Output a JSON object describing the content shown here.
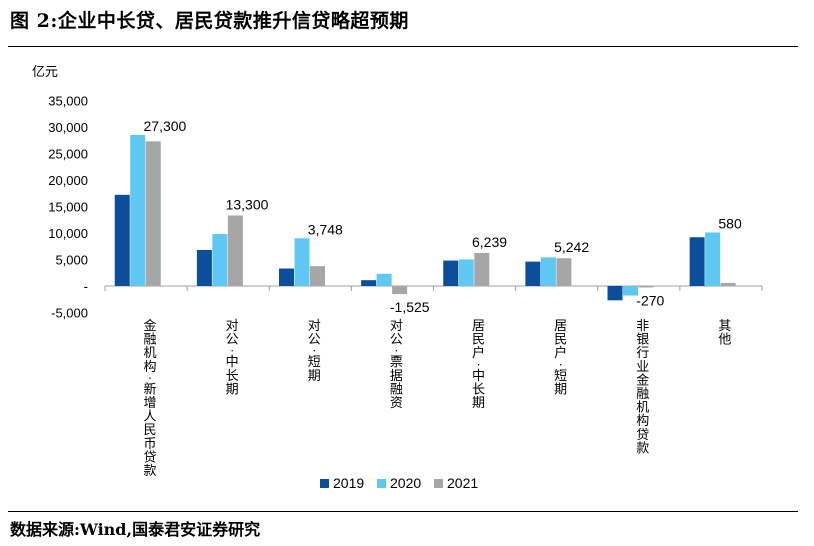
{
  "header": {
    "title": "图 2:企业中长贷、居民贷款推升信贷略超预期"
  },
  "footer": {
    "source": "数据来源:Wind,国泰君安证券研究"
  },
  "colors": {
    "2019": "#0b4f9c",
    "2020": "#5ec8f2",
    "2021": "#a6a6a6"
  },
  "chart_data": {
    "type": "bar",
    "unit_label": "亿元",
    "categories": [
      "金融机构:新增人民币贷款",
      "对公:中长期",
      "对公:短期",
      "对公:票据融资",
      "居民户:中长期",
      "居民户:短期",
      "非银行业金融机构贷款",
      "其他"
    ],
    "series": [
      {
        "name": "2019",
        "values": [
          17200,
          6800,
          3300,
          1100,
          4800,
          4600,
          -2700,
          9200
        ]
      },
      {
        "name": "2020",
        "values": [
          28500,
          9800,
          9000,
          2300,
          5000,
          5400,
          -1800,
          10100
        ]
      },
      {
        "name": "2021",
        "values": [
          27300,
          13300,
          3748,
          -1525,
          6239,
          5242,
          -270,
          580
        ]
      }
    ],
    "data_labels": {
      "series": "2021",
      "texts": [
        "27,300",
        "13,300",
        "3,748",
        "-1,525",
        "6,239",
        "5,242",
        "-270",
        "580"
      ]
    },
    "y_ticks": [
      {
        "value": 35000,
        "label": "35,000"
      },
      {
        "value": 30000,
        "label": "30,000"
      },
      {
        "value": 25000,
        "label": "25,000"
      },
      {
        "value": 20000,
        "label": "20,000"
      },
      {
        "value": 15000,
        "label": "15,000"
      },
      {
        "value": 10000,
        "label": "10,000"
      },
      {
        "value": 5000,
        "label": "5,000"
      },
      {
        "value": 0,
        "label": "-"
      },
      {
        "value": -5000,
        "label": "-5,000"
      }
    ],
    "ylim": [
      -5000,
      35000
    ],
    "grid": false,
    "legend_position": "bottom"
  }
}
